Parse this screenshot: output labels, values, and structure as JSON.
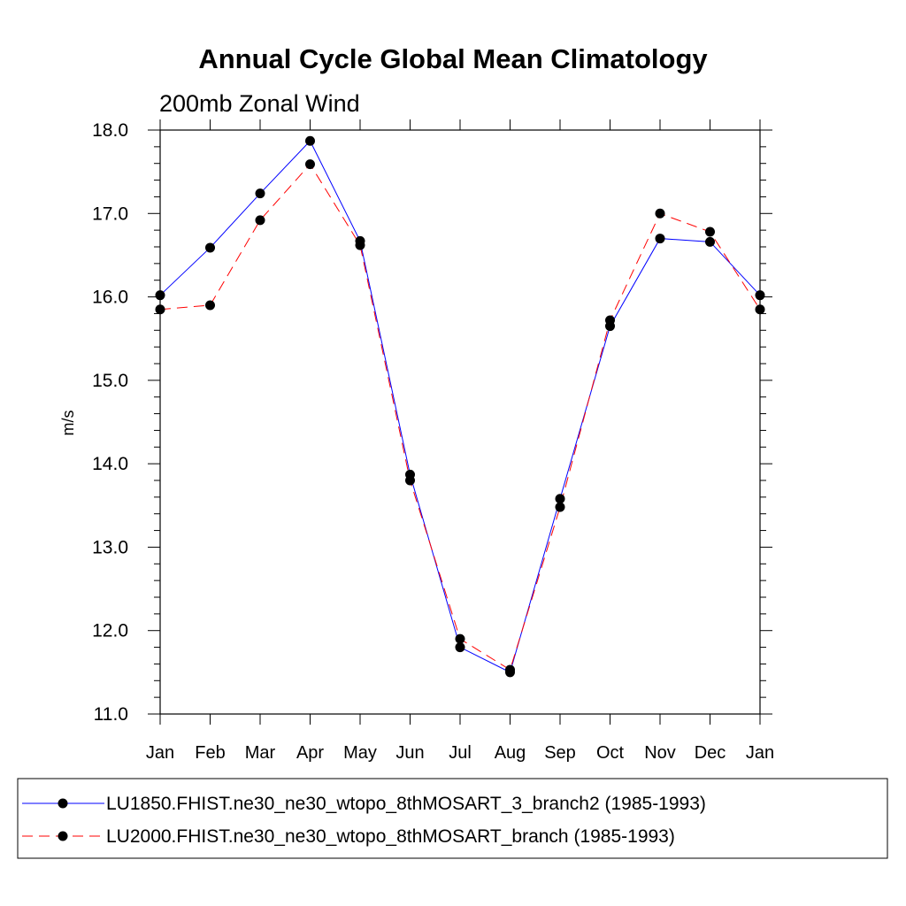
{
  "chart_data": {
    "type": "line",
    "title": "Annual Cycle Global Mean Climatology",
    "subtitle": "200mb Zonal Wind",
    "xlabel": "",
    "ylabel": "m/s",
    "categories": [
      "Jan",
      "Feb",
      "Mar",
      "Apr",
      "May",
      "Jun",
      "Jul",
      "Aug",
      "Sep",
      "Oct",
      "Nov",
      "Dec",
      "Jan"
    ],
    "ylim": [
      11.0,
      18.0
    ],
    "yticks": [
      "11.0",
      "12.0",
      "13.0",
      "14.0",
      "15.0",
      "16.0",
      "17.0",
      "18.0"
    ],
    "grid": false,
    "legend_position": "bottom",
    "series": [
      {
        "name": "LU1850.FHIST.ne30_ne30_wtopo_8thMOSART_3_branch2 (1985-1993)",
        "color": "#0000ff",
        "style": "solid",
        "marker": "filled-circle",
        "values": [
          16.02,
          16.59,
          17.24,
          17.87,
          16.67,
          13.87,
          11.8,
          11.5,
          13.58,
          15.65,
          16.7,
          16.66,
          16.02
        ]
      },
      {
        "name": "LU2000.FHIST.ne30_ne30_wtopo_8thMOSART_branch (1985-1993)",
        "color": "#ff0000",
        "style": "dashed",
        "marker": "filled-circle",
        "values": [
          15.85,
          15.9,
          16.92,
          17.59,
          16.62,
          13.8,
          11.9,
          11.53,
          13.48,
          15.72,
          17.0,
          16.78,
          15.85
        ]
      }
    ]
  }
}
